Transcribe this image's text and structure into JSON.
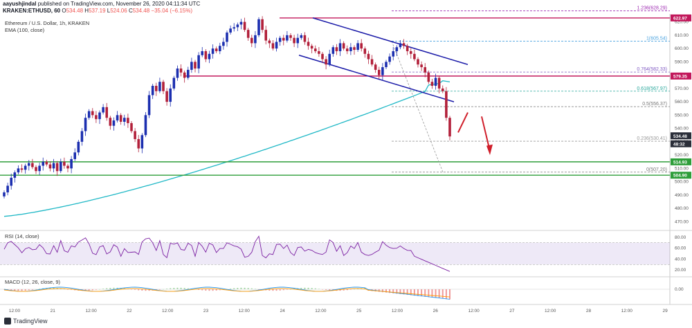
{
  "header": {
    "publisher": "aayushjindal",
    "published_text": "published on TradingView.com, November 26, 2020 04:11:34 UTC",
    "symbol": "KRAKEN:ETHUSD, 60",
    "ohlc": {
      "o": "534.48",
      "h": "537.19",
      "l": "524.06",
      "c": "534.48"
    },
    "change": "−35.04 (−6.15%)",
    "instrument": "Ethereum / U.S. Dollar, 1h, KRAKEN",
    "ema_label": "EMA (100, close)",
    "rsi_label": "RSI (14, close)",
    "macd_label": "MACD (12, 26, close, 9)"
  },
  "footer": {
    "brand": "TradingView"
  },
  "colors": {
    "up": "#26a69a",
    "down": "#b2203a",
    "bull_candle": "#1c2fb0",
    "ema": "#1fb8c6",
    "resistance": "#c2185b",
    "support": "#2e9e3a",
    "channel": "#1a1aa8",
    "arrow": "#d01e2a"
  },
  "chart_data": {
    "type": "candlestick",
    "price_axis": {
      "ylim": [
        465,
        625
      ],
      "ticks": [
        470,
        480,
        490,
        500,
        510,
        520,
        530,
        540,
        550,
        560,
        570,
        580,
        590,
        600,
        610,
        620
      ]
    },
    "time_axis": {
      "labels": [
        "12:00",
        "21",
        "12:00",
        "22",
        "12:00",
        "23",
        "12:00",
        "24",
        "12:00",
        "25",
        "12:00",
        "26",
        "12:00",
        "27",
        "12:00",
        "28",
        "12:00",
        "29"
      ]
    },
    "closes": [
      492,
      497,
      503,
      507,
      510,
      509,
      512,
      514,
      511,
      508,
      512,
      515,
      513,
      510,
      514,
      508,
      515,
      512,
      510,
      517,
      522,
      530,
      538,
      548,
      553,
      550,
      547,
      552,
      556,
      548,
      542,
      546,
      550,
      545,
      548,
      544,
      538,
      532,
      525,
      535,
      550,
      565,
      572,
      568,
      575,
      568,
      560,
      570,
      578,
      585,
      582,
      578,
      584,
      590,
      585,
      595,
      598,
      592,
      596,
      600,
      598,
      602,
      605,
      612,
      615,
      616,
      618,
      620,
      614,
      608,
      604,
      610,
      622,
      614,
      606,
      604,
      600,
      605,
      608,
      606,
      610,
      608,
      604,
      608,
      610,
      605,
      602,
      600,
      598,
      596,
      592,
      588,
      596,
      601,
      598,
      604,
      600,
      598,
      601,
      599,
      604,
      600,
      596,
      592,
      588,
      584,
      580,
      586,
      590,
      594,
      598,
      601,
      604,
      602,
      598,
      596,
      592,
      588,
      586,
      582,
      575,
      572,
      578,
      570,
      568,
      548,
      534
    ],
    "ema_100": {
      "name": "EMA (100, close)",
      "start": 474,
      "end": 575
    },
    "horizontal_levels": [
      622.97,
      579.35,
      514.93,
      504.9
    ],
    "fib_levels": [
      {
        "label": "1.236(628.29)",
        "value": 628.29
      },
      {
        "label": "1(605.54)",
        "value": 605.54
      },
      {
        "label": "0.764(582.33)",
        "value": 582.33
      },
      {
        "label": "0.618(567.97)",
        "value": 567.97
      },
      {
        "label": "0.5(556.37)",
        "value": 556.37
      },
      {
        "label": "0.236(530.41)",
        "value": 530.41
      },
      {
        "label": "0(507.20)",
        "value": 507.2
      }
    ],
    "price_tags": [
      {
        "label": "622.97",
        "value": 622.97,
        "color": "#c2185b"
      },
      {
        "label": "579.35",
        "value": 579.35,
        "color": "#c2185b"
      },
      {
        "label": "534.48",
        "value": 534.48,
        "color": "#2a2e39"
      },
      {
        "label": "48:32",
        "value": 528.5,
        "color": "#2a2e39"
      },
      {
        "label": "514.93",
        "value": 514.93,
        "color": "#2e9e3a"
      },
      {
        "label": "504.90",
        "value": 504.9,
        "color": "#2e9e3a"
      }
    ],
    "rsi": {
      "ylim": [
        10,
        90
      ],
      "ticks": [
        20,
        40,
        60,
        80
      ],
      "band": [
        30,
        70
      ]
    },
    "macd": {
      "ticks": [
        0.0
      ]
    }
  }
}
